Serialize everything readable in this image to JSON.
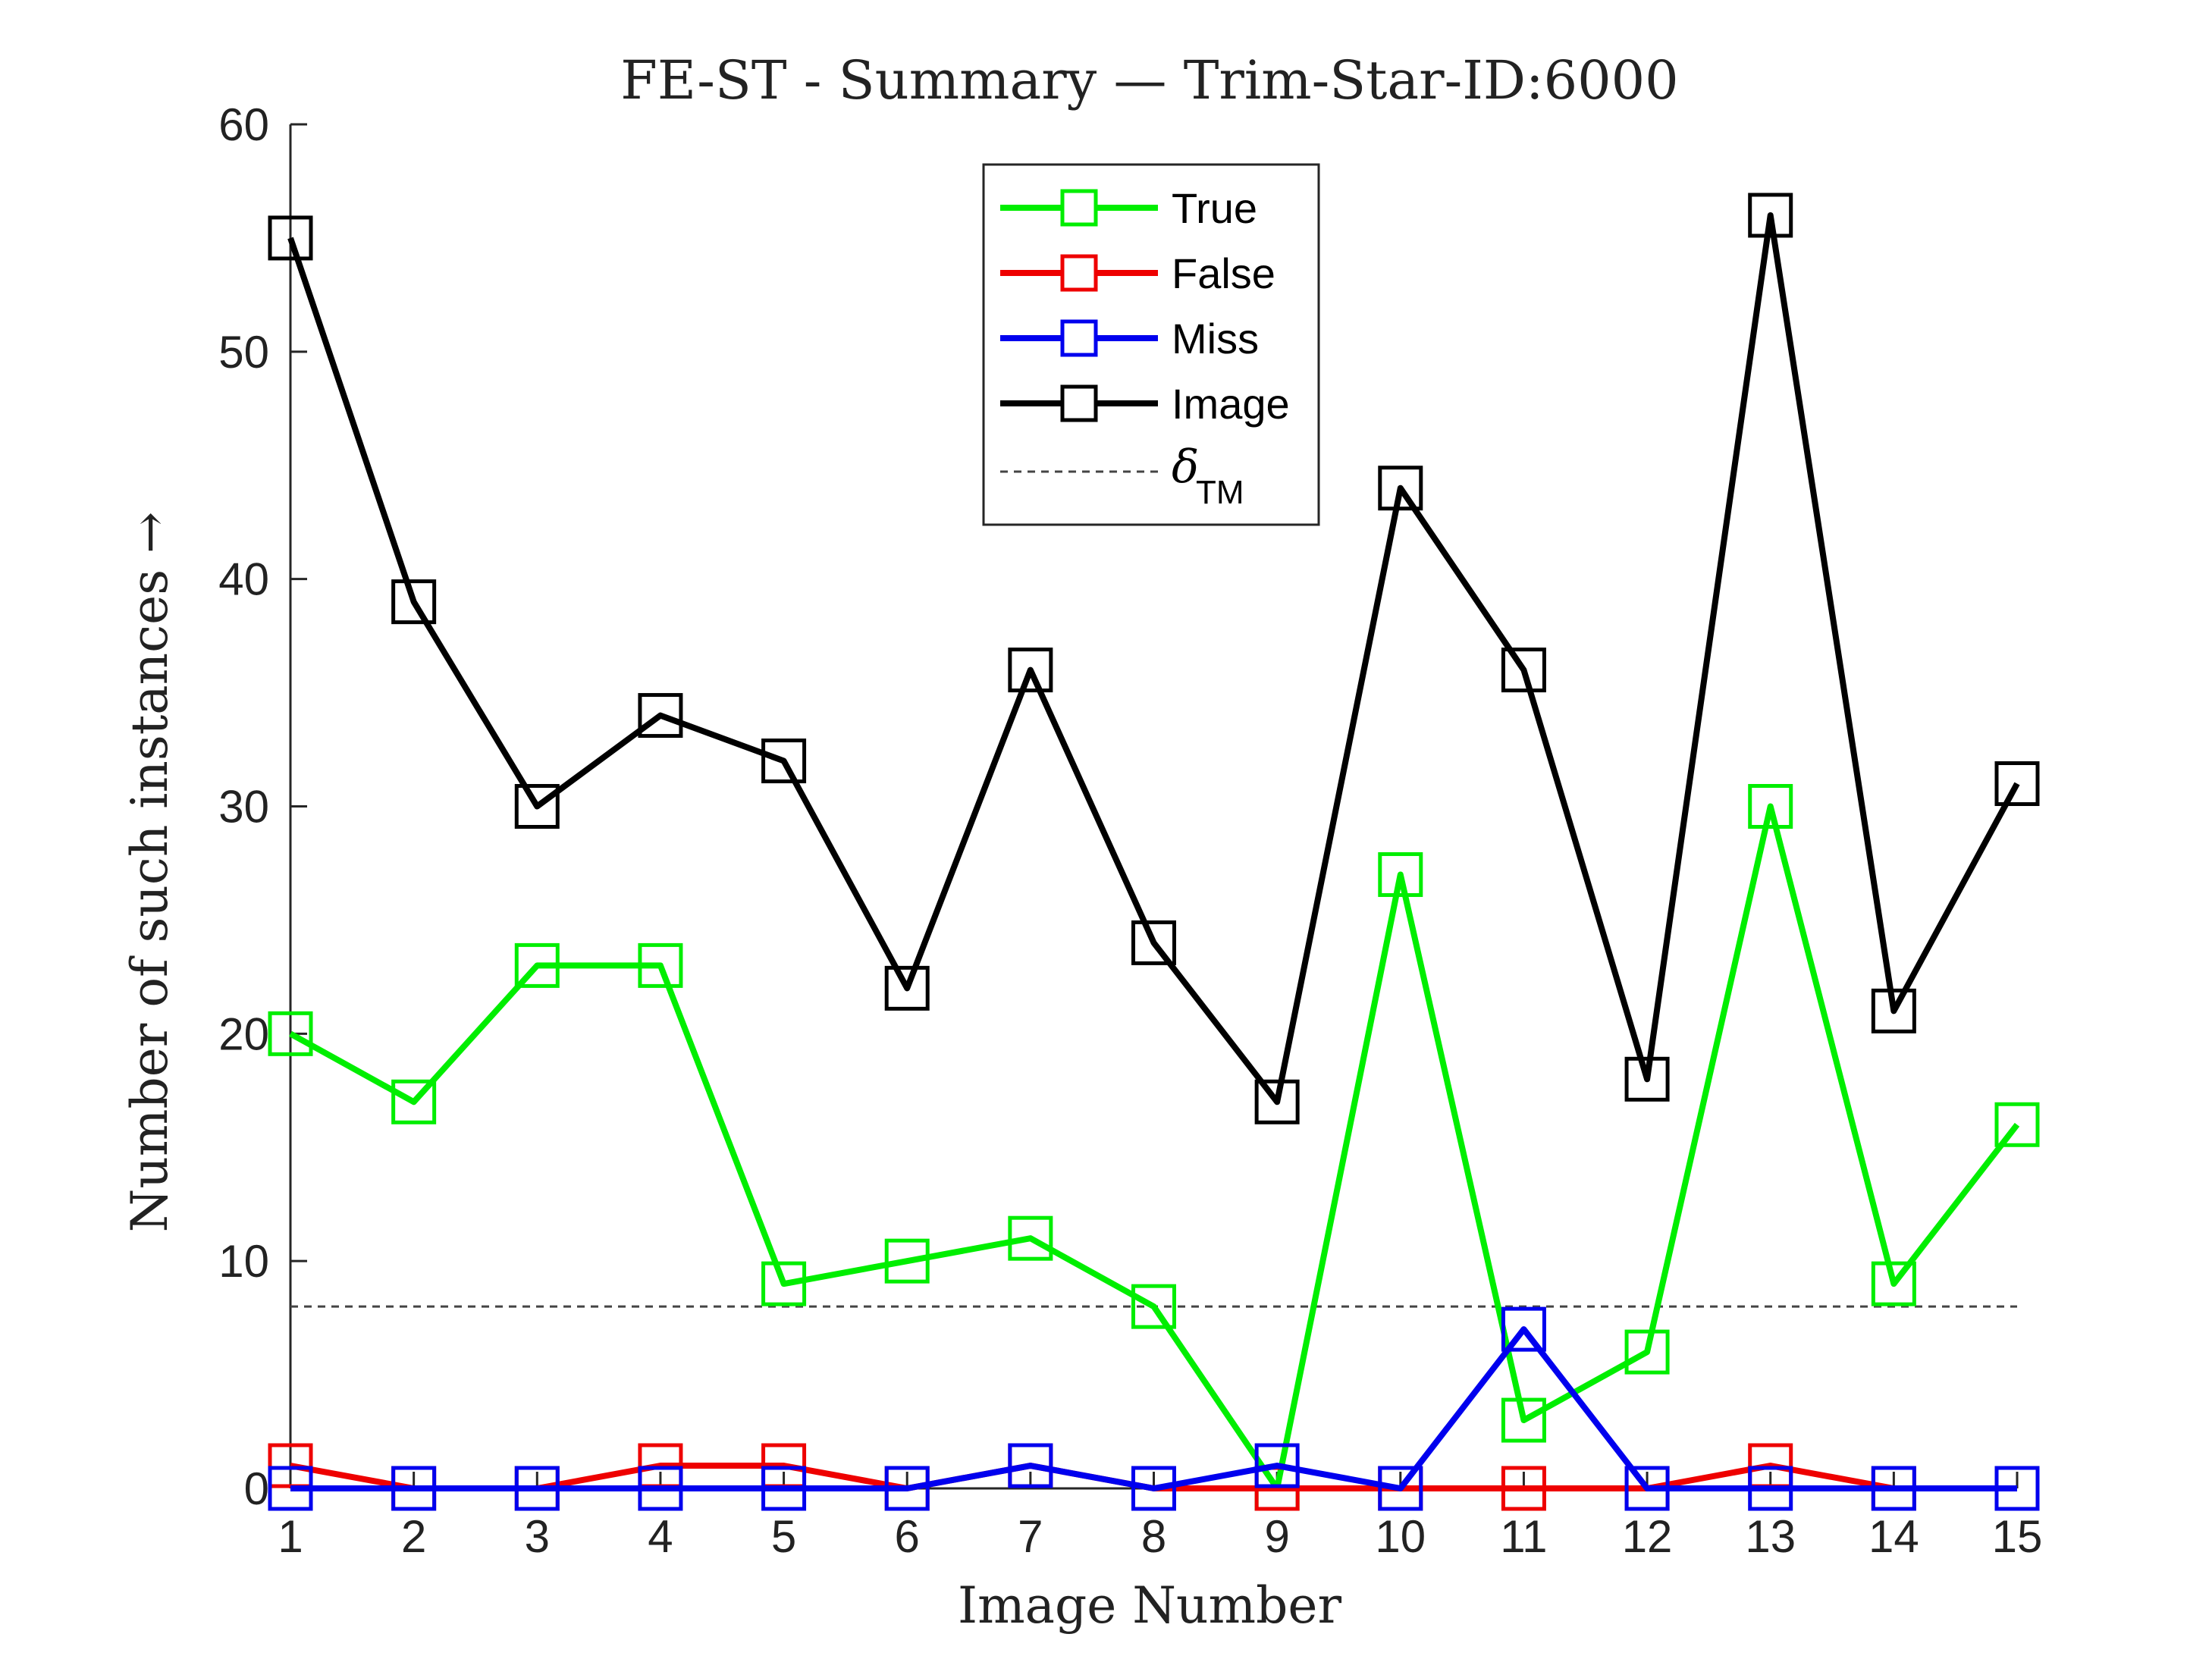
{
  "chart_data": {
    "type": "line",
    "title": "FE-ST - Summary — Trim-Star-ID:6000",
    "xlabel": "Image Number",
    "ylabel": "Number of such instances →",
    "x": [
      1,
      2,
      3,
      4,
      5,
      6,
      7,
      8,
      9,
      10,
      11,
      12,
      13,
      14,
      15
    ],
    "xlim": [
      1,
      15
    ],
    "ylim": [
      0,
      60
    ],
    "yticks": [
      0,
      10,
      20,
      30,
      40,
      50,
      60
    ],
    "grid": false,
    "legend_position": "top-center",
    "series": [
      {
        "name": "True",
        "color": "#00ee00",
        "marker": "square",
        "values": [
          20,
          17,
          23,
          23,
          9,
          10,
          11,
          8,
          0,
          27,
          3,
          6,
          30,
          9,
          16
        ]
      },
      {
        "name": "False",
        "color": "#ee0000",
        "marker": "square",
        "values": [
          1,
          0,
          0,
          1,
          1,
          0,
          1,
          0,
          0,
          0,
          0,
          0,
          1,
          0,
          0
        ]
      },
      {
        "name": "Miss",
        "color": "#0000ee",
        "marker": "square",
        "values": [
          0,
          0,
          0,
          0,
          0,
          0,
          1,
          0,
          1,
          0,
          7,
          0,
          0,
          0,
          0
        ]
      },
      {
        "name": "Image",
        "color": "#000000",
        "marker": "square",
        "values": [
          55,
          39,
          30,
          34,
          32,
          22,
          36,
          24,
          17,
          44,
          36,
          18,
          56,
          21,
          31
        ]
      }
    ],
    "threshold": {
      "symbol": "δ",
      "subscript": "TM",
      "value": 8,
      "color": "#444444",
      "style": "dashed"
    }
  }
}
